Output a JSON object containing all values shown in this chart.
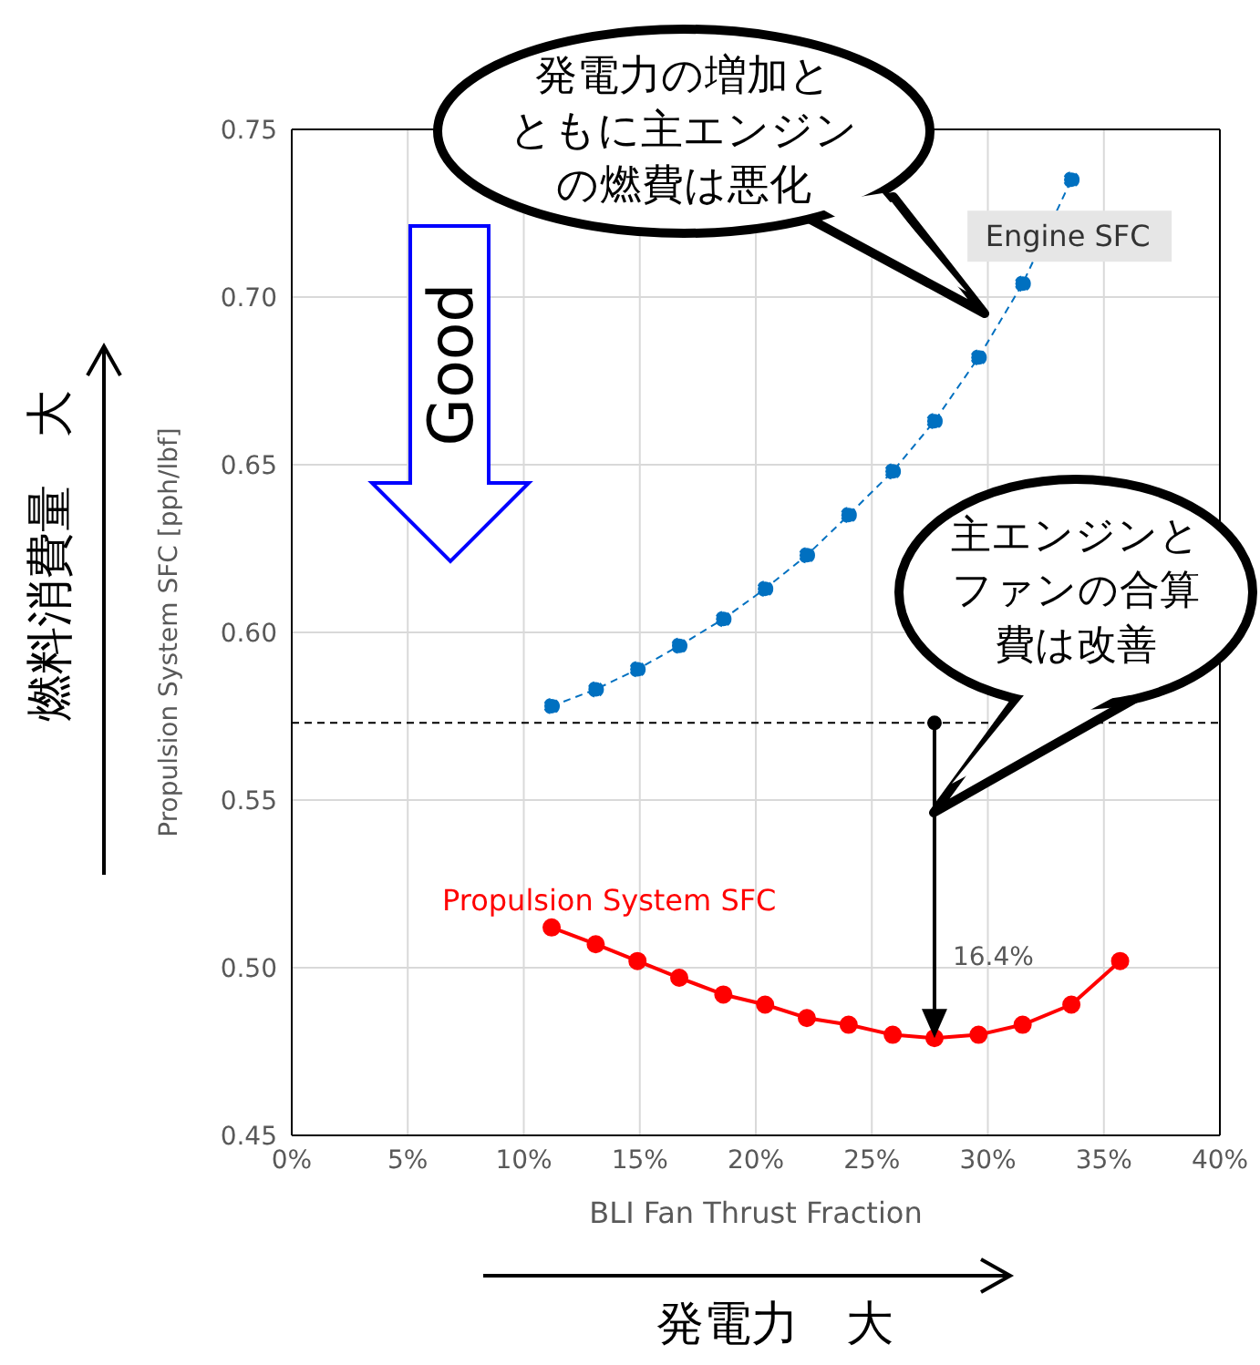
{
  "chart_data": {
    "type": "line",
    "xlabel": "BLI Fan Thrust Fraction",
    "ylabel": "Propulsion System SFC [pph/lbf]",
    "xlim": [
      0,
      40
    ],
    "xticks": [
      {
        "value": 0,
        "label": "0%"
      },
      {
        "value": 5,
        "label": "5%"
      },
      {
        "value": 10,
        "label": "10%"
      },
      {
        "value": 15,
        "label": "15%"
      },
      {
        "value": 20,
        "label": "20%"
      },
      {
        "value": 25,
        "label": "25%"
      },
      {
        "value": 30,
        "label": "30%"
      },
      {
        "value": 35,
        "label": "35%"
      },
      {
        "value": 40,
        "label": "40%"
      }
    ],
    "ylim": [
      0.45,
      0.75
    ],
    "yticks": [
      0.45,
      {
        "value": 0.5,
        "label": "0.50"
      },
      0.55,
      {
        "value": 0.6,
        "label": "0.60"
      },
      0.65,
      {
        "value": 0.7,
        "label": "0.70"
      },
      0.75
    ],
    "grid": true,
    "marker": "circle",
    "series": [
      {
        "name": "Engine SFC",
        "color": "#0070c0",
        "line_style": "dashed",
        "x": [
          11.2,
          13.1,
          14.9,
          16.7,
          18.6,
          20.4,
          22.2,
          24.0,
          25.9,
          27.7,
          29.6,
          31.5,
          33.6
        ],
        "values": [
          0.578,
          0.583,
          0.589,
          0.596,
          0.604,
          0.613,
          0.623,
          0.635,
          0.648,
          0.663,
          0.682,
          0.704,
          0.735
        ]
      },
      {
        "name": "Propulsion System SFC",
        "color": "#ff0000",
        "line_style": "solid",
        "x": [
          11.2,
          13.1,
          14.9,
          16.7,
          18.6,
          20.4,
          22.2,
          24.0,
          25.9,
          27.7,
          29.6,
          31.5,
          33.6,
          35.7
        ],
        "values": [
          0.512,
          0.507,
          0.502,
          0.497,
          0.492,
          0.489,
          0.485,
          0.483,
          0.48,
          0.479,
          0.48,
          0.483,
          0.489,
          0.502
        ]
      }
    ],
    "ref_lines": [
      {
        "axis": "y",
        "value": 0.573,
        "color": "#000000",
        "line_style": "dashed"
      }
    ],
    "annotations": [
      "発電力の増加とともに主エンジンの燃費は悪化",
      "主エンジンとファンの合算費は改善",
      "Good",
      "燃料消費量　大",
      "発電力　大",
      {
        "text": "16.4%",
        "x": 27.7,
        "y": 0.479
      }
    ]
  }
}
